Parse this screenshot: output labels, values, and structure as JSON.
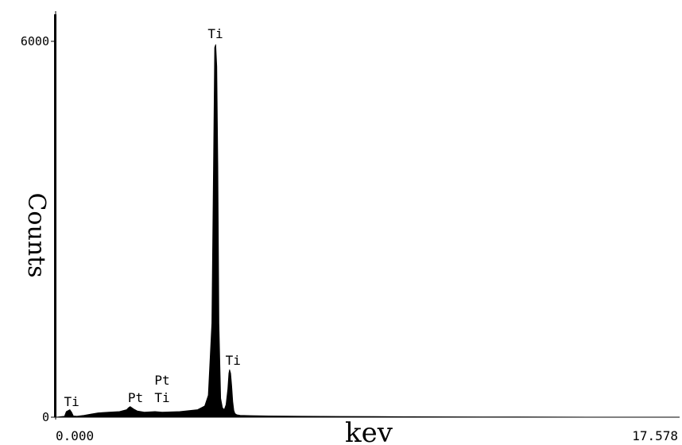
{
  "chart_data": {
    "type": "area",
    "xlabel": "kev",
    "ylabel": "Counts",
    "xlim": [
      0.0,
      17.578
    ],
    "ylim": [
      0,
      6000
    ],
    "x_tick_labels": [
      "0.000",
      "17.578"
    ],
    "y_tick_labels": [
      "6000",
      "0"
    ],
    "series": [
      {
        "x": [
          0.0,
          0.25,
          0.3,
          0.4,
          0.45,
          0.5,
          0.6,
          0.8,
          1.0,
          1.2,
          1.5,
          1.8,
          2.0,
          2.05,
          2.1,
          2.2,
          2.3,
          2.5,
          2.8,
          3.0,
          3.5,
          4.0,
          4.2,
          4.3,
          4.4,
          4.45,
          4.48,
          4.51,
          4.54,
          4.57,
          4.6,
          4.65,
          4.7,
          4.75,
          4.8,
          4.85,
          4.88,
          4.9,
          4.93,
          4.96,
          4.99,
          5.02,
          5.05,
          5.1,
          5.2,
          5.5,
          6.0,
          7.0,
          8.0,
          9.0,
          10.0,
          11.0,
          12.0,
          13.0,
          14.0,
          15.0,
          16.0,
          17.578
        ],
        "values": [
          0,
          15,
          90,
          120,
          80,
          20,
          15,
          30,
          50,
          70,
          80,
          90,
          120,
          150,
          170,
          130,
          100,
          80,
          90,
          80,
          90,
          120,
          180,
          350,
          1500,
          4200,
          5900,
          5950,
          5600,
          4000,
          1500,
          300,
          150,
          120,
          200,
          450,
          700,
          760,
          700,
          500,
          250,
          110,
          60,
          40,
          30,
          25,
          20,
          15,
          12,
          10,
          8,
          6,
          5,
          4,
          3,
          2,
          1,
          0
        ]
      }
    ],
    "peak_labels": [
      {
        "text": "Ti",
        "x": 0.45,
        "y": 180
      },
      {
        "text": "Pt",
        "x": 2.25,
        "y": 240
      },
      {
        "text": "Pt",
        "x": 3.0,
        "y": 520
      },
      {
        "text": "Ti",
        "x": 3.0,
        "y": 240
      },
      {
        "text": "Ti",
        "x": 4.5,
        "y": 6050
      },
      {
        "text": "Ti",
        "x": 5.0,
        "y": 840
      }
    ],
    "grid": false,
    "legend": "none"
  }
}
